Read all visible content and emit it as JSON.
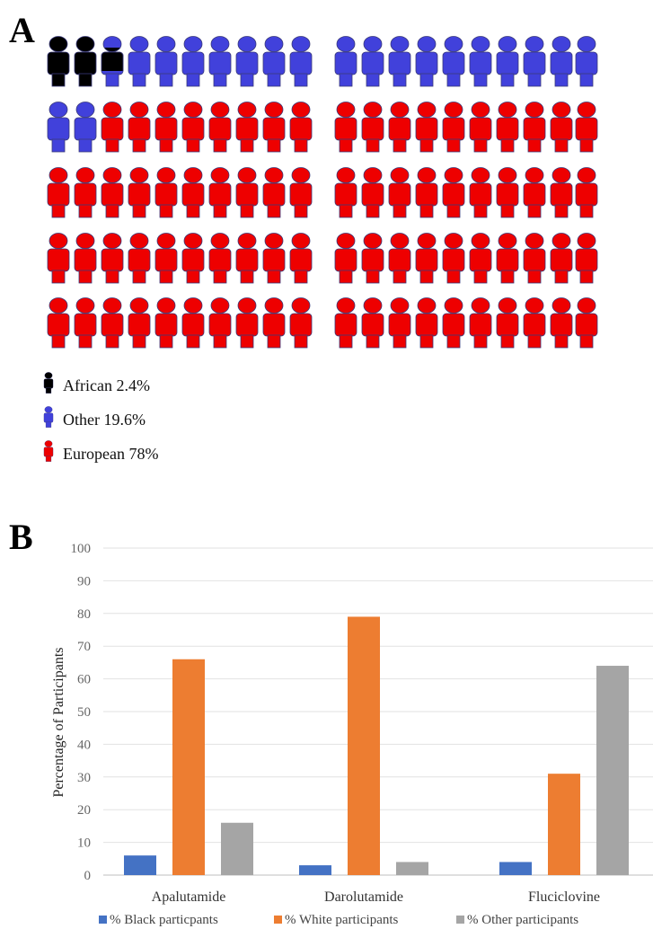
{
  "panel_a": {
    "letter": "A",
    "legend": [
      {
        "label": "African 2.4%",
        "color": "#000000",
        "icon": "person-icon"
      },
      {
        "label": "Other 19.6%",
        "color": "#4141db",
        "icon": "person-icon"
      },
      {
        "label": "European 78%",
        "color": "#ee0000",
        "icon": "person-icon"
      }
    ]
  },
  "panel_b": {
    "letter": "B"
  },
  "chart_data": [
    {
      "type": "pictograph",
      "total_icons": 100,
      "series": [
        {
          "name": "African 2.4%",
          "value": 2.4,
          "color": "#000000"
        },
        {
          "name": "Other 19.6%",
          "value": 19.6,
          "color": "#4141db"
        },
        {
          "name": "European 78%",
          "value": 78,
          "color": "#ee0000"
        }
      ]
    },
    {
      "type": "bar",
      "categories": [
        "Apalutamide",
        "Darolutamide",
        "Fluciclovine"
      ],
      "series": [
        {
          "name": "% Black particpants",
          "values": [
            6,
            3,
            4
          ],
          "color": "#4472c4"
        },
        {
          "name": "% White participants",
          "values": [
            66,
            79,
            31
          ],
          "color": "#ed7d31"
        },
        {
          "name": "% Other participants",
          "values": [
            16,
            4,
            64
          ],
          "color": "#a5a5a5"
        }
      ],
      "ylabel": "Percentage of Participants",
      "xlabel": "",
      "ylim": [
        0,
        100
      ],
      "yticks": [
        "0",
        "10",
        "20",
        "30",
        "40",
        "50",
        "60",
        "70",
        "80",
        "90",
        "100"
      ],
      "grid": true,
      "legend_position": "bottom"
    }
  ]
}
